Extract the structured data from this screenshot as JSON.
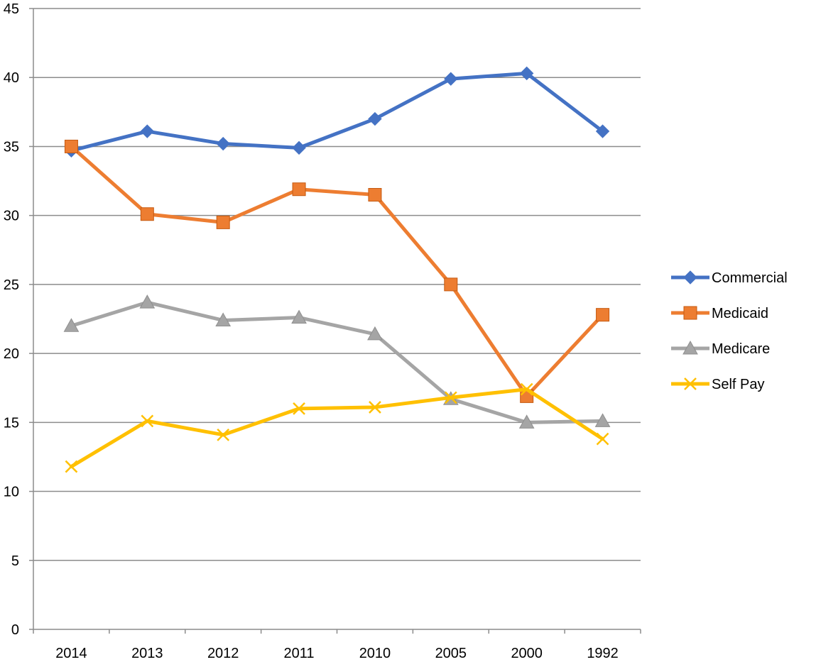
{
  "chart_data": {
    "type": "line",
    "title": "",
    "xlabel": "",
    "ylabel": "",
    "categories": [
      "2014",
      "2013",
      "2012",
      "2011",
      "2010",
      "2005",
      "2000",
      "1992"
    ],
    "ylim": [
      0,
      45
    ],
    "yticks": [
      0,
      5,
      10,
      15,
      20,
      25,
      30,
      35,
      40,
      45
    ],
    "grid": true,
    "legend_position": "right",
    "series": [
      {
        "name": "Commercial",
        "color": "#4472C4",
        "marker": "diamond",
        "values": [
          34.7,
          36.1,
          35.2,
          34.9,
          37.0,
          39.9,
          40.3,
          36.1
        ]
      },
      {
        "name": "Medicaid",
        "color": "#ED7D31",
        "marker": "square",
        "values": [
          35.0,
          30.1,
          29.5,
          31.9,
          31.5,
          25.0,
          16.9,
          22.8
        ]
      },
      {
        "name": "Medicare",
        "color": "#A5A5A5",
        "marker": "triangle",
        "values": [
          22.0,
          23.7,
          22.4,
          22.6,
          21.4,
          16.7,
          15.0,
          15.1
        ]
      },
      {
        "name": "Self Pay",
        "color": "#FFC000",
        "marker": "x",
        "values": [
          11.8,
          15.1,
          14.1,
          16.0,
          16.1,
          16.8,
          17.4,
          13.8
        ]
      }
    ]
  }
}
